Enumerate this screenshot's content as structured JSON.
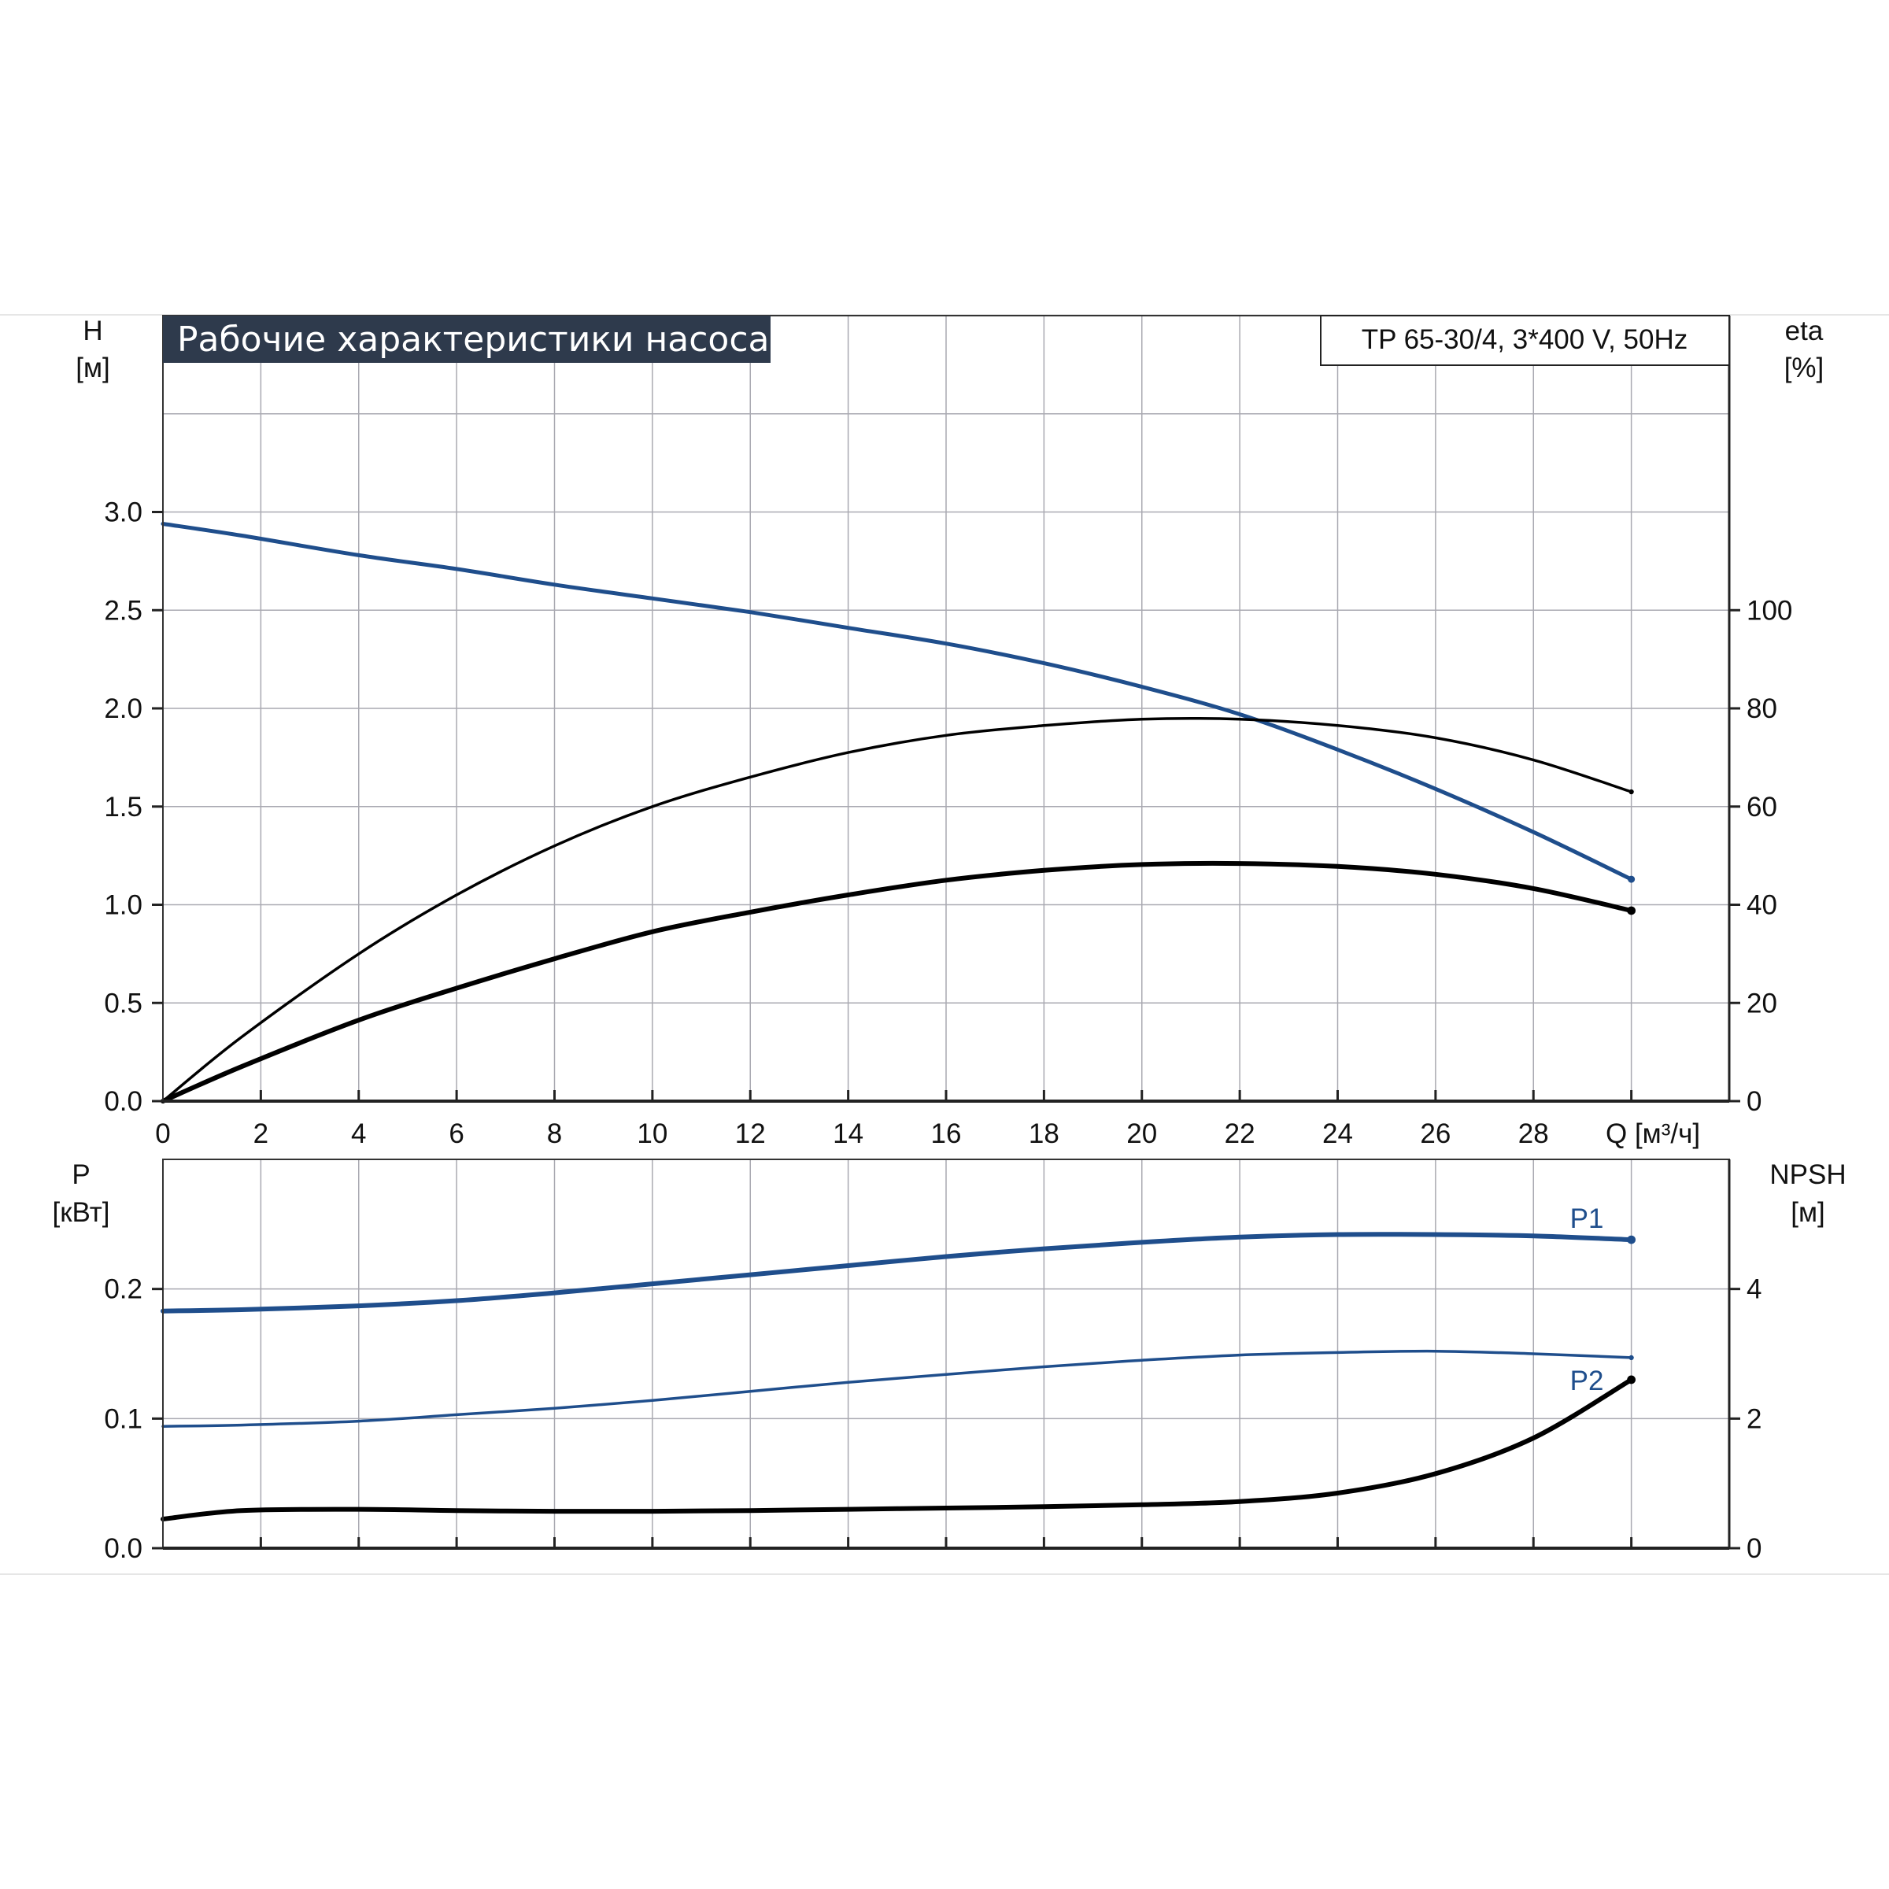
{
  "colors": {
    "title_bg": "#2e3a4c",
    "title_fg": "#ffffff",
    "blue_curve": "#1f4e8c",
    "black_curve": "#000000",
    "grid": "#a9a9b1",
    "frame": "#333333"
  },
  "chart_data": [
    {
      "type": "line",
      "title": "Рабочие характеристики насоса",
      "model_label": "TP 65-30/4, 3*400 V, 50Hz",
      "xlabel": "Q [м³/ч]",
      "ylabel_left": "H",
      "ylabel_left_unit": "[м]",
      "ylabel_right": "eta",
      "ylabel_right_unit": "[%]",
      "xlim": [
        0,
        32
      ],
      "ylim_left": [
        0,
        4
      ],
      "ylim_right": [
        0,
        160
      ],
      "x_ticks": [
        "0",
        "2",
        "4",
        "6",
        "8",
        "10",
        "12",
        "14",
        "16",
        "18",
        "20",
        "22",
        "24",
        "26",
        "28"
      ],
      "y_left_ticks": [
        "0.0",
        "0.5",
        "1.0",
        "1.5",
        "2.0",
        "2.5",
        "3.0"
      ],
      "y_right_ticks": [
        "0",
        "20",
        "40",
        "60",
        "80",
        "100"
      ],
      "grid": true,
      "series": [
        {
          "axis": "left",
          "color": "blue",
          "x": [
            0,
            1.6,
            4,
            6,
            8,
            10,
            12,
            14,
            16,
            18,
            20,
            22,
            24,
            26,
            28,
            30
          ],
          "values": [
            2.94,
            2.88,
            2.78,
            2.71,
            2.63,
            2.56,
            2.49,
            2.41,
            2.33,
            2.23,
            2.11,
            1.97,
            1.79,
            1.59,
            1.37,
            1.13
          ]
        },
        {
          "axis": "right",
          "color": "black-thin",
          "x": [
            0,
            1.6,
            4,
            6,
            8,
            10,
            12,
            14,
            16,
            18,
            20,
            22,
            24,
            26,
            28,
            30
          ],
          "values": [
            0,
            13,
            30,
            42,
            52,
            60,
            66,
            71,
            74.5,
            76.5,
            77.8,
            77.8,
            76.5,
            74,
            69.5,
            63
          ]
        },
        {
          "axis": "right",
          "color": "black-thick",
          "x": [
            0,
            1.6,
            4,
            6,
            8,
            10,
            12,
            14,
            16,
            18,
            20,
            22,
            24,
            26,
            28,
            30
          ],
          "values": [
            0,
            7,
            16.5,
            23,
            29,
            34.5,
            38.5,
            42,
            45,
            47,
            48.2,
            48.4,
            47.8,
            46.2,
            43.3,
            38.8
          ]
        }
      ]
    },
    {
      "type": "line",
      "xlabel": "",
      "ylabel_left": "P",
      "ylabel_left_unit": "[кВт]",
      "ylabel_right": "NPSH",
      "ylabel_right_unit": "[м]",
      "xlim": [
        0,
        32
      ],
      "ylim_left": [
        0,
        0.3
      ],
      "ylim_right": [
        0,
        6
      ],
      "y_left_ticks": [
        "0.0",
        "0.1",
        "0.2"
      ],
      "y_right_ticks": [
        "0",
        "2",
        "4"
      ],
      "grid": true,
      "series": [
        {
          "name": "P1",
          "axis": "left",
          "color": "blue-thick",
          "x": [
            0,
            1.6,
            4,
            6,
            8,
            10,
            12,
            14,
            16,
            18,
            20,
            22,
            24,
            26,
            28,
            30
          ],
          "values": [
            0.183,
            0.184,
            0.187,
            0.191,
            0.197,
            0.204,
            0.211,
            0.218,
            0.225,
            0.231,
            0.236,
            0.24,
            0.242,
            0.242,
            0.241,
            0.238
          ]
        },
        {
          "name": "P2",
          "axis": "left",
          "color": "blue-thin",
          "x": [
            0,
            1.6,
            4,
            6,
            8,
            10,
            12,
            14,
            16,
            18,
            20,
            22,
            24,
            26,
            28,
            30
          ],
          "values": [
            0.094,
            0.095,
            0.098,
            0.103,
            0.108,
            0.114,
            0.121,
            0.128,
            0.134,
            0.14,
            0.145,
            0.149,
            0.151,
            0.152,
            0.15,
            0.147
          ]
        },
        {
          "axis": "right",
          "color": "black-thick",
          "x": [
            0,
            1.6,
            4,
            6,
            8,
            10,
            12,
            14,
            16,
            18,
            20,
            22,
            24,
            26,
            28,
            30
          ],
          "values": [
            0.45,
            0.58,
            0.6,
            0.58,
            0.57,
            0.57,
            0.58,
            0.6,
            0.62,
            0.64,
            0.67,
            0.72,
            0.85,
            1.15,
            1.7,
            2.6
          ]
        }
      ]
    }
  ]
}
